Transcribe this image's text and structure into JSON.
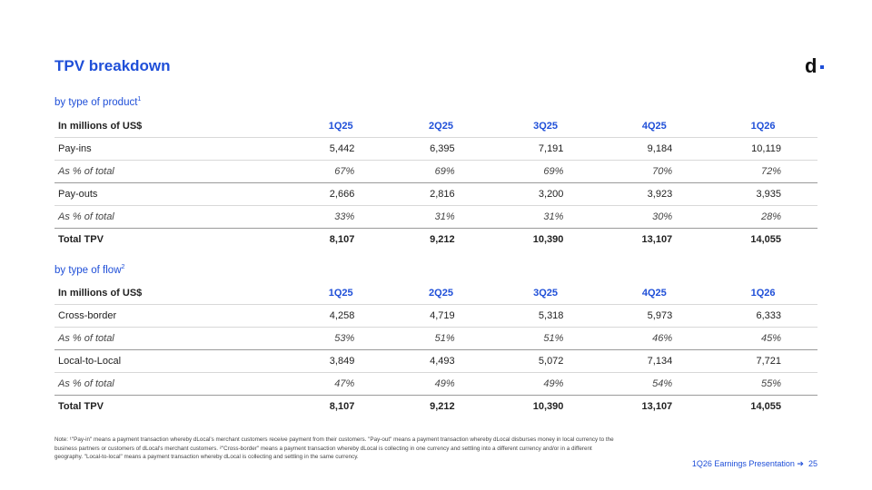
{
  "title": "TPV breakdown",
  "logo": "d",
  "section1": {
    "label": "by type of product",
    "sup": "1"
  },
  "section2": {
    "label": "by type of flow",
    "sup": "2"
  },
  "table1": {
    "header": [
      "In millions of US$",
      "1Q25",
      "2Q25",
      "3Q25",
      "4Q25",
      "1Q26"
    ],
    "rows": [
      {
        "cells": [
          "Pay-ins",
          "5,442",
          "6,395",
          "7,191",
          "9,184",
          "10,119"
        ]
      },
      {
        "cells": [
          "As % of total",
          "67%",
          "69%",
          "69%",
          "70%",
          "72%"
        ]
      },
      {
        "cells": [
          "Pay-outs",
          "2,666",
          "2,816",
          "3,200",
          "3,923",
          "3,935"
        ]
      },
      {
        "cells": [
          "As % of total",
          "33%",
          "31%",
          "31%",
          "30%",
          "28%"
        ]
      },
      {
        "cells": [
          "Total TPV",
          "8,107",
          "9,212",
          "10,390",
          "13,107",
          "14,055"
        ]
      }
    ]
  },
  "table2": {
    "header": [
      "In millions of US$",
      "1Q25",
      "2Q25",
      "3Q25",
      "4Q25",
      "1Q26"
    ],
    "rows": [
      {
        "cells": [
          "Cross-border",
          "4,258",
          "4,719",
          "5,318",
          "5,973",
          "6,333"
        ]
      },
      {
        "cells": [
          "As % of total",
          "53%",
          "51%",
          "51%",
          "46%",
          "45%"
        ]
      },
      {
        "cells": [
          "Local-to-Local",
          "3,849",
          "4,493",
          "5,072",
          "7,134",
          "7,721"
        ]
      },
      {
        "cells": [
          "As % of total",
          "47%",
          "49%",
          "49%",
          "54%",
          "55%"
        ]
      },
      {
        "cells": [
          "Total TPV",
          "8,107",
          "9,212",
          "10,390",
          "13,107",
          "14,055"
        ]
      }
    ]
  },
  "note": "Note: ¹\"Pay-in\" means a payment transaction whereby dLocal's merchant customers receive payment from their customers. \"Pay-out\" means a payment transaction whereby dLocal disburses money in local currency to the business partners or customers of dLocal's merchant customers. ²\"Cross-border\" means a payment transaction whereby dLocal is collecting in one currency and settling into a different currency and/or in a different geography. \"Local-to-local\" means a payment transaction whereby dLocal is collecting and settling in the same currency.",
  "footer": {
    "text": "1Q26 Earnings Presentation ➔",
    "page": "25"
  }
}
